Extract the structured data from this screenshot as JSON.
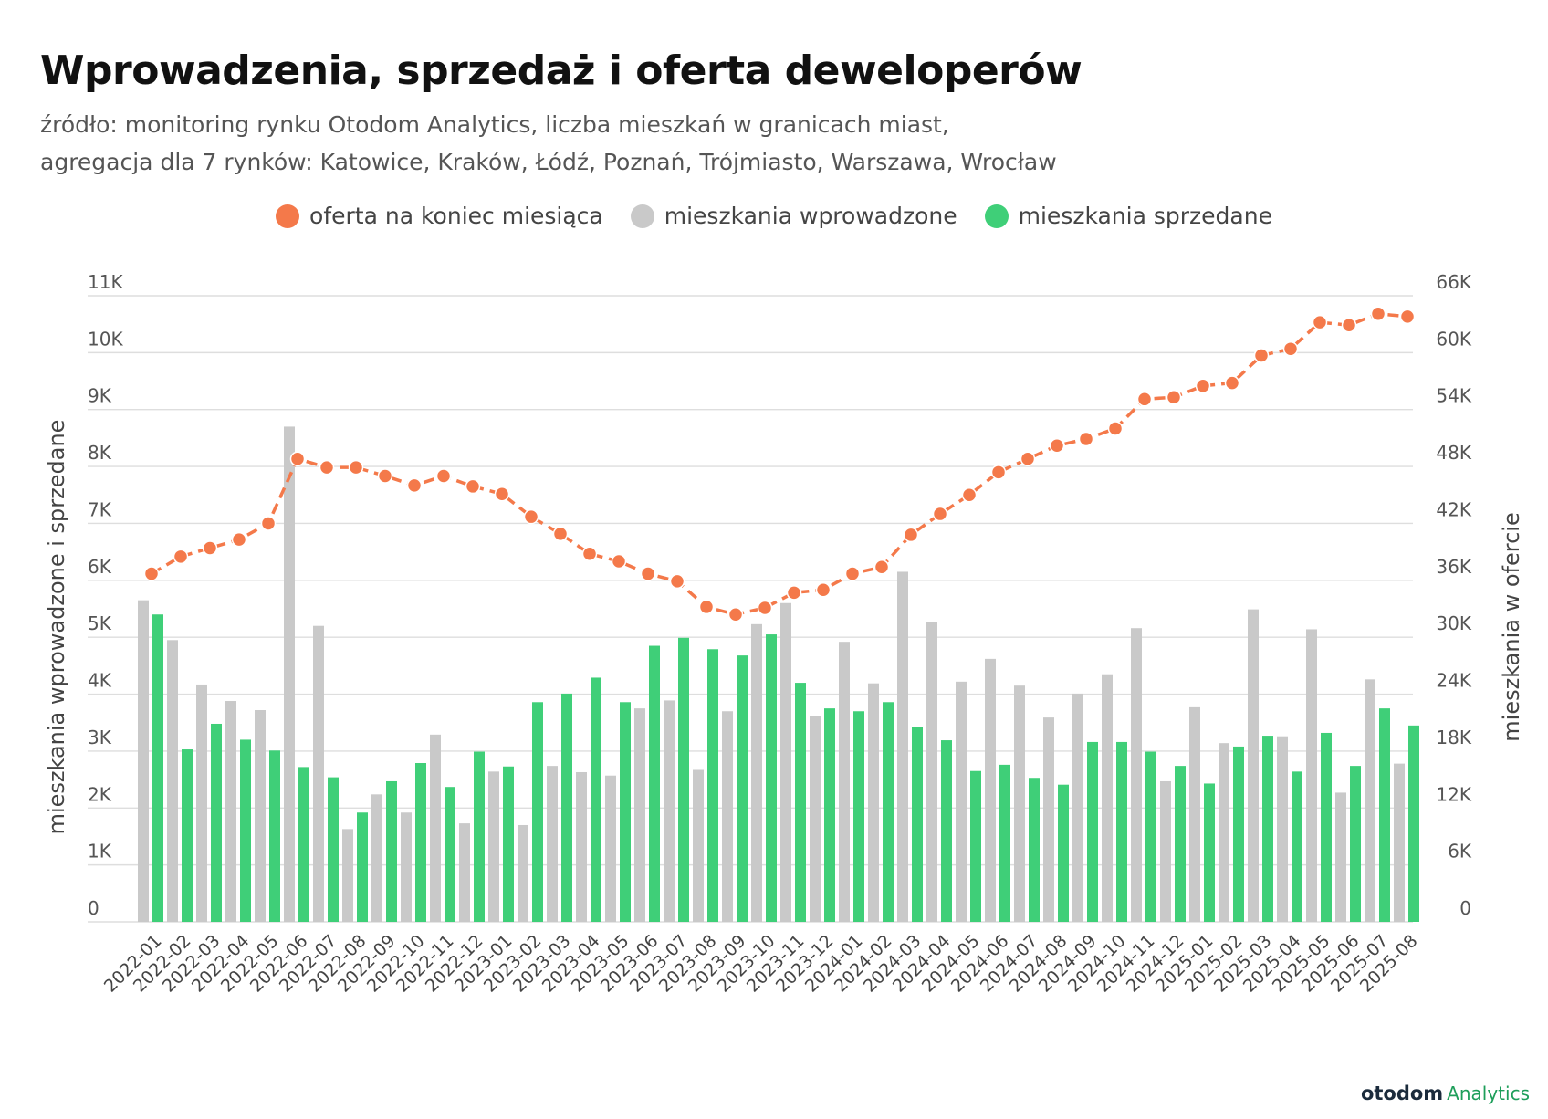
{
  "header": {
    "title": "Wprowadzenia, sprzedaż i oferta deweloperów",
    "subtitle_line1": "źródło: monitoring rynku Otodom Analytics, liczba mieszkań w granicach miast,",
    "subtitle_line2": "agregacja dla 7 rynków: Katowice, Kraków, Łódź, Poznań, Trójmiasto, Warszawa, Wrocław"
  },
  "legend": [
    {
      "label": "oferta na koniec miesiąca",
      "color": "#f4794a"
    },
    {
      "label": "mieszkania wprowadzone",
      "color": "#c9c9c9"
    },
    {
      "label": "mieszkania sprzedane",
      "color": "#3fcf78"
    }
  ],
  "logo": {
    "main": "otodom",
    "sub": "Analytics"
  },
  "chart_data": {
    "type": "bar",
    "categories": [
      "2022-01",
      "2022-02",
      "2022-03",
      "2022-04",
      "2022-05",
      "2022-06",
      "2022-07",
      "2022-08",
      "2022-09",
      "2022-10",
      "2022-11",
      "2022-12",
      "2023-01",
      "2023-02",
      "2023-03",
      "2023-04",
      "2023-05",
      "2023-06",
      "2023-07",
      "2023-08",
      "2023-09",
      "2023-10",
      "2023-11",
      "2023-12",
      "2024-01",
      "2024-02",
      "2024-03",
      "2024-04",
      "2024-05",
      "2024-06",
      "2024-07",
      "2024-08",
      "2024-09",
      "2024-10",
      "2024-11",
      "2024-12",
      "2025-01",
      "2025-02",
      "2025-03",
      "2025-04",
      "2025-05",
      "2025-06",
      "2025-07",
      "2025-08"
    ],
    "series": [
      {
        "name": "mieszkania wprowadzone",
        "type": "bar",
        "axis": "left",
        "color": "#c9c9c9",
        "values": [
          5650,
          4950,
          4170,
          3880,
          3720,
          8700,
          5200,
          1630,
          2240,
          1920,
          3290,
          1730,
          2640,
          1700,
          2740,
          2630,
          2570,
          3750,
          3890,
          2670,
          3700,
          5230,
          5600,
          3610,
          4920,
          4190,
          6150,
          5260,
          4220,
          4620,
          4150,
          3590,
          4010,
          4350,
          5160,
          2470,
          3770,
          3140,
          5490,
          3260,
          5140,
          2270,
          4260,
          2780
        ]
      },
      {
        "name": "mieszkania sprzedane",
        "type": "bar",
        "axis": "left",
        "color": "#3fcf78",
        "values": [
          5400,
          3030,
          3480,
          3200,
          3010,
          2720,
          2540,
          1920,
          2470,
          2790,
          2370,
          2990,
          2730,
          3860,
          4010,
          4290,
          3860,
          4850,
          4990,
          4790,
          4680,
          5050,
          4200,
          3750,
          3700,
          3860,
          3420,
          3190,
          2650,
          2760,
          2530,
          2410,
          3160,
          3160,
          2990,
          2740,
          2430,
          3080,
          3270,
          2640,
          3320,
          2740,
          3750,
          3450
        ]
      },
      {
        "name": "oferta na koniec miesiąca",
        "type": "line",
        "axis": "right",
        "color": "#f4794a",
        "values": [
          36700,
          38500,
          39400,
          40300,
          42000,
          48800,
          47900,
          47900,
          47000,
          46000,
          47000,
          45900,
          45100,
          42700,
          40900,
          38800,
          38000,
          36700,
          35900,
          33200,
          32400,
          33100,
          34700,
          35000,
          36700,
          37400,
          40800,
          43000,
          45000,
          47400,
          48800,
          50200,
          50900,
          52000,
          55100,
          55300,
          56500,
          56800,
          59700,
          60400,
          63200,
          62900,
          64100,
          63800
        ]
      }
    ],
    "ylabel": "mieszkania wprowadzone i sprzedane",
    "y2label": "mieszkania w ofercie",
    "ylim": [
      0,
      11000
    ],
    "y2lim": [
      0,
      66000
    ],
    "yticks": [
      "0",
      "1K",
      "2K",
      "3K",
      "4K",
      "5K",
      "6K",
      "7K",
      "8K",
      "9K",
      "10K",
      "11K"
    ],
    "y2ticks": [
      "0",
      "6K",
      "12K",
      "18K",
      "24K",
      "30K",
      "36K",
      "42K",
      "48K",
      "54K",
      "60K",
      "66K"
    ],
    "grid": true,
    "legend_position": "top"
  }
}
